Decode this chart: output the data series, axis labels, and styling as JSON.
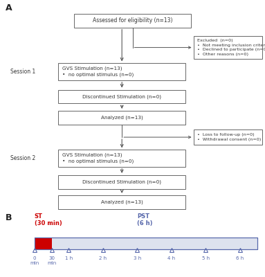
{
  "background_color": "#ffffff",
  "panel_a_label": "A",
  "panel_b_label": "B",
  "box_edge_color": "#666666",
  "box_face_color": "#ffffff",
  "arrow_color": "#555555",
  "text_color": "#333333",
  "timeline": {
    "red_color": "#cc0000",
    "blue_color": "#5566aa",
    "tick_labels": [
      "0\nmin",
      "30\nmin",
      "1 h",
      "2 h",
      "3 h",
      "4 h",
      "5 h",
      "6 h"
    ],
    "tick_x_norm": [
      0.0,
      0.5,
      1.0,
      2.0,
      3.0,
      4.0,
      5.0,
      6.0
    ],
    "total_hours": 6.5
  }
}
